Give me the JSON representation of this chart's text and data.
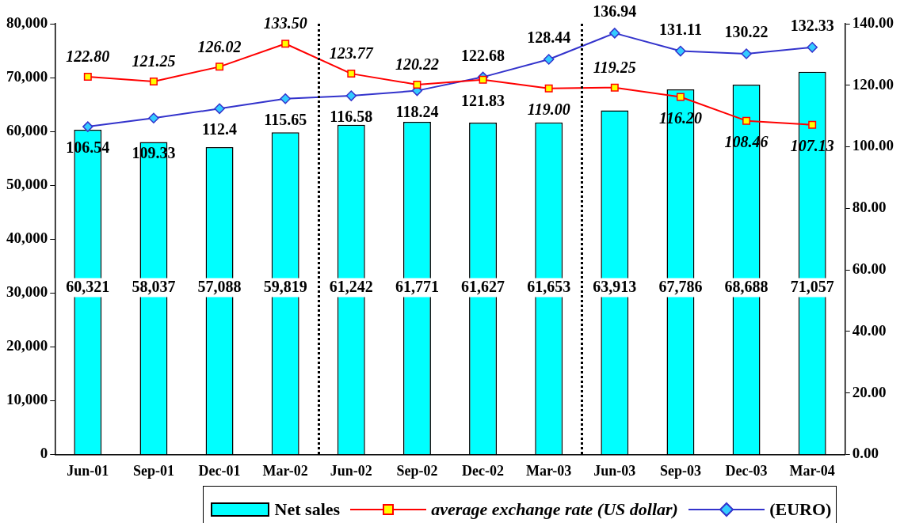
{
  "chart_data": {
    "type": "bar",
    "categories": [
      "Jun-01",
      "Sep-01",
      "Dec-01",
      "Mar-02",
      "Jun-02",
      "Sep-02",
      "Dec-02",
      "Mar-03",
      "Jun-03",
      "Sep-03",
      "Dec-03",
      "Mar-04"
    ],
    "series": [
      {
        "name": "Net sales",
        "color": "#00ffff",
        "values": [
          60321,
          58037,
          57088,
          59819,
          61242,
          61771,
          61627,
          61653,
          63913,
          67786,
          68688,
          71057
        ],
        "value_labels": [
          "60,321",
          "58,037",
          "57,088",
          "59,819",
          "61,242",
          "61,771",
          "61,627",
          "61,653",
          "63,913",
          "67,786",
          "68,688",
          "71,057"
        ]
      },
      {
        "name": "average exchange rate (US dollar)",
        "type": "line",
        "axis": "y2",
        "marker": "square",
        "color": "#ff0000",
        "values": [
          122.8,
          121.25,
          126.02,
          133.5,
          123.77,
          120.22,
          121.83,
          119.0,
          119.25,
          116.2,
          108.46,
          107.13
        ],
        "value_labels": [
          "122.80",
          "121.25",
          "126.02",
          "133.50",
          "123.77",
          "120.22",
          "121.83",
          "119.00",
          "119.25",
          "116.20",
          "108.46",
          "107.13"
        ]
      },
      {
        "name": "(EURO)",
        "type": "line",
        "axis": "y2",
        "marker": "diamond",
        "color": "#3333cc",
        "values": [
          106.54,
          109.33,
          112.4,
          115.65,
          116.58,
          118.24,
          122.68,
          128.44,
          136.94,
          131.11,
          130.22,
          132.33
        ],
        "value_labels": [
          "106.54",
          "109.33",
          "112.4",
          "115.65",
          "116.58",
          "118.24",
          "122.68",
          "128.44",
          "136.94",
          "131.11",
          "130.22",
          "132.33"
        ]
      }
    ],
    "ylim": [
      0,
      80000
    ],
    "yticks": [
      {
        "value": 0,
        "label": "0"
      },
      {
        "value": 10000,
        "label": "10,000"
      },
      {
        "value": 20000,
        "label": "20,000"
      },
      {
        "value": 30000,
        "label": "30,000"
      },
      {
        "value": 40000,
        "label": "40,000"
      },
      {
        "value": 50000,
        "label": "50,000"
      },
      {
        "value": 60000,
        "label": "60,000"
      },
      {
        "value": 70000,
        "label": "70,000"
      },
      {
        "value": 80000,
        "label": "80,000"
      }
    ],
    "y2lim": [
      0,
      140
    ],
    "y2ticks": [
      {
        "value": 0,
        "label": "0.00"
      },
      {
        "value": 20,
        "label": "20.00"
      },
      {
        "value": 40,
        "label": "40.00"
      },
      {
        "value": 60,
        "label": "60.00"
      },
      {
        "value": 80,
        "label": "80.00"
      },
      {
        "value": 100,
        "label": "100.00"
      },
      {
        "value": 120,
        "label": "120.00"
      },
      {
        "value": 140,
        "label": "140.00"
      }
    ],
    "grid": false,
    "legend": "bottom"
  }
}
